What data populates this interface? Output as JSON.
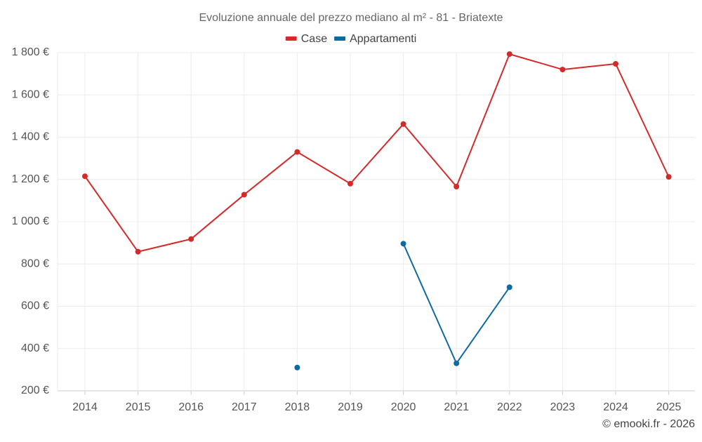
{
  "chart_data": {
    "type": "line",
    "title": "Evoluzione annuale del prezzo mediano al m² - 81 - Briatexte",
    "categories": [
      "2014",
      "2015",
      "2016",
      "2017",
      "2018",
      "2019",
      "2020",
      "2021",
      "2022",
      "2023",
      "2024",
      "2025"
    ],
    "series": [
      {
        "name": "Case",
        "color": "#d42a2a",
        "values": [
          1215,
          858,
          918,
          1128,
          1330,
          1180,
          1462,
          1166,
          1793,
          1720,
          1747,
          1212
        ]
      },
      {
        "name": "Appartamenti",
        "color": "#0e6aa3",
        "values": [
          null,
          null,
          null,
          null,
          310,
          null,
          896,
          330,
          690,
          null,
          null,
          null
        ]
      }
    ],
    "ylim": [
      200,
      1800
    ],
    "yticks": [
      200,
      400,
      600,
      800,
      1000,
      1200,
      1400,
      1600,
      1800
    ],
    "ytick_labels": [
      "200 €",
      "400 €",
      "600 €",
      "800 €",
      "1 000 €",
      "1 200 €",
      "1 400 €",
      "1 600 €",
      "1 800 €"
    ],
    "xlabel": "",
    "ylabel": "",
    "grid": true,
    "legend_position": "top-center",
    "credit": "© emooki.fr - 2026"
  }
}
